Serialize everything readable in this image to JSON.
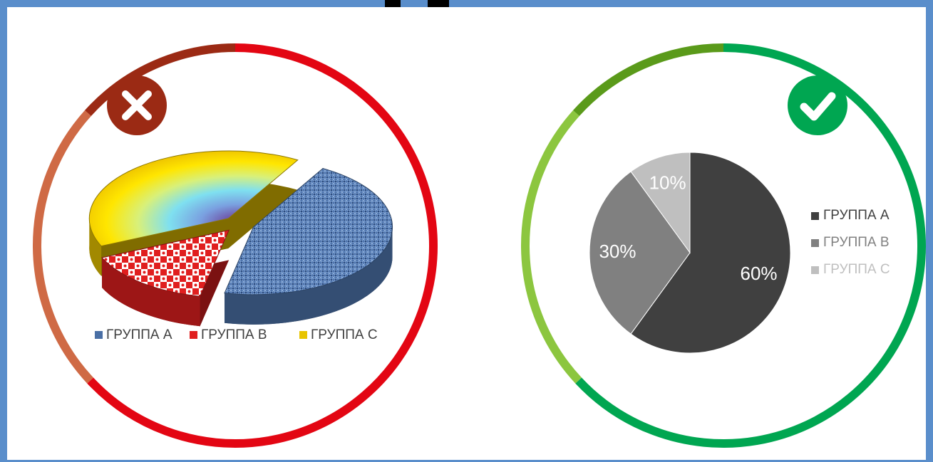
{
  "chart_data": [
    {
      "type": "pie",
      "3d": true,
      "legend": "bottom",
      "categories": [
        "ГРУППА А",
        "ГРУППА В",
        "ГРУППА С"
      ],
      "values": [
        45,
        15,
        40
      ],
      "colors": [
        "#4a6fa5",
        "#e01f1f",
        "#e8c400"
      ]
    },
    {
      "type": "pie",
      "3d": false,
      "legend": "right",
      "categories": [
        "ГРУППА А",
        "ГРУППА В",
        "ГРУППА С"
      ],
      "values": [
        60,
        30,
        10
      ],
      "value_labels": [
        "60%",
        "30%",
        "10%"
      ],
      "colors": [
        "#404040",
        "#808080",
        "#bfbfbf"
      ]
    }
  ]
}
